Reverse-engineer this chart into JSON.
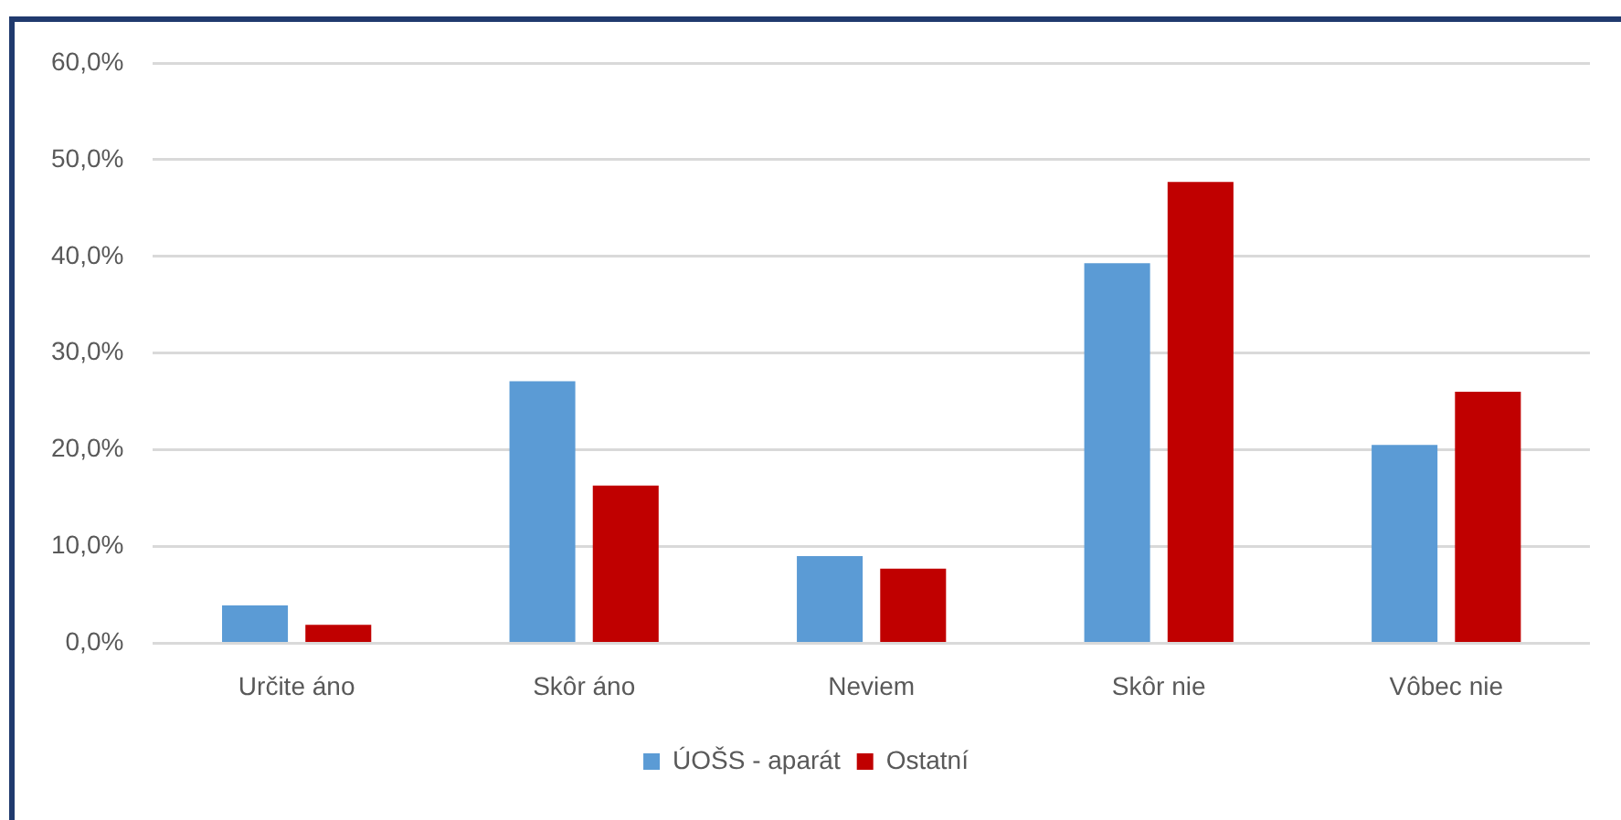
{
  "chart_data": {
    "type": "bar",
    "categories": [
      "Určite áno",
      "Skôr áno",
      "Neviem",
      "Skôr nie",
      "Vôbec nie"
    ],
    "series": [
      {
        "name": "ÚOŠS - aparát",
        "color": "#5b9bd5",
        "values": [
          3.9,
          27.1,
          9.0,
          39.3,
          20.5
        ]
      },
      {
        "name": "Ostatní",
        "color": "#c00000",
        "values": [
          1.9,
          16.3,
          7.7,
          47.7,
          26.0
        ]
      }
    ],
    "ylim": [
      0,
      60
    ],
    "yticks": [
      {
        "value": 0,
        "label": "0,0%"
      },
      {
        "value": 10,
        "label": "10,0%"
      },
      {
        "value": 20,
        "label": "20,0%"
      },
      {
        "value": 30,
        "label": "30,0%"
      },
      {
        "value": 40,
        "label": "40,0%"
      },
      {
        "value": 50,
        "label": "50,0%"
      },
      {
        "value": 60,
        "label": "60,0%"
      }
    ],
    "grid": "y",
    "legend": "bottom"
  }
}
